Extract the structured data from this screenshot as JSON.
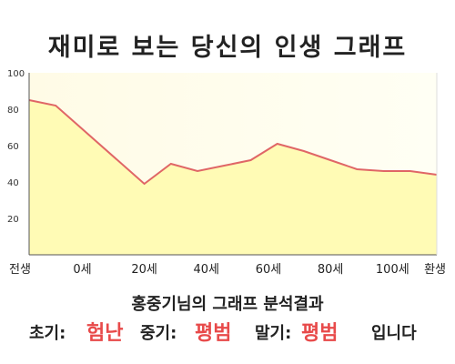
{
  "title": "재미로 보는 당신의 인생 그래프",
  "chart_data": {
    "type": "area",
    "x": [
      0,
      6,
      26,
      32,
      38,
      44,
      50,
      56,
      62,
      68,
      74,
      80,
      86,
      92
    ],
    "values": [
      85,
      82,
      39,
      50,
      46,
      49,
      52,
      61,
      57,
      52,
      47,
      46,
      46,
      44
    ],
    "xlim": [
      0,
      92
    ],
    "ylim": [
      0,
      100
    ],
    "y_ticks": [
      20,
      40,
      60,
      80,
      100
    ],
    "x_ticks": [
      {
        "x": 0,
        "label": "전생"
      },
      {
        "x": 12,
        "label": "0세"
      },
      {
        "x": 26,
        "label": "20세"
      },
      {
        "x": 40,
        "label": "40세"
      },
      {
        "x": 54,
        "label": "60세"
      },
      {
        "x": 68,
        "label": "80세"
      },
      {
        "x": 82,
        "label": "100세"
      },
      {
        "x": 92,
        "label": "환생"
      }
    ],
    "grid": false,
    "line_color": "#e06666",
    "fill_color": "#fffbb5"
  },
  "result": {
    "heading": "홍중기님의 그래프 분석결과",
    "early_label": "초기:",
    "early_value": "험난",
    "middle_label": "중기:",
    "middle_value": "평범",
    "late_label": "말기:",
    "late_value": "평범",
    "suffix": "입니다"
  }
}
